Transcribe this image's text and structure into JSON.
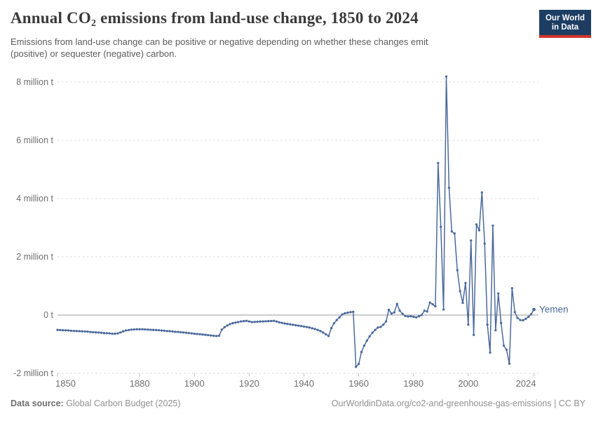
{
  "header": {
    "title_pre": "Annual CO",
    "title_sub": "2",
    "title_post": " emissions from land-use change, 1850 to 2024",
    "subtitle_line1": "Emissions from land-use change can be positive or negative depending on whether these changes emit",
    "subtitle_line2": "(positive) or sequester (negative) carbon.",
    "logo": {
      "line1": "Our World",
      "line2": "in Data",
      "bg_color": "#1d3d63",
      "accent_color": "#d2362c"
    }
  },
  "footer": {
    "source_label": "Data source:",
    "source_text": "Global Carbon Budget (2025)",
    "credit": "OurWorldinData.org/co2-and-greenhouse-gas-emissions | CC BY"
  },
  "chart_data": {
    "type": "line",
    "title": "Annual CO2 emissions from land-use change, 1850 to 2024",
    "entity": "Yemen",
    "unit": "million tonnes",
    "line_color": "#4c6a9c",
    "axis_text_color": "#6f6f6f",
    "grid": "dashed horizontal gridlines, solid zero line",
    "legend_position": "end-of-line entity label",
    "xlabel": "",
    "ylabel": "",
    "xlim": [
      1850,
      2024
    ],
    "ylim": [
      -2,
      8.4
    ],
    "x_ticks": [
      1850,
      1880,
      1900,
      1920,
      1940,
      1960,
      1980,
      2000,
      2024
    ],
    "y_ticks": [
      {
        "value": 8,
        "label": "8 million t"
      },
      {
        "value": 6,
        "label": "6 million t"
      },
      {
        "value": 4,
        "label": "4 million t"
      },
      {
        "value": 2,
        "label": "2 million t"
      },
      {
        "value": 0,
        "label": "0 t"
      },
      {
        "value": -2,
        "label": "-2 million t"
      }
    ],
    "x_start": 1850,
    "x_step": 1,
    "values": [
      -0.51,
      -0.515,
      -0.52,
      -0.525,
      -0.53,
      -0.54,
      -0.545,
      -0.55,
      -0.555,
      -0.56,
      -0.565,
      -0.57,
      -0.58,
      -0.59,
      -0.595,
      -0.6,
      -0.61,
      -0.62,
      -0.625,
      -0.63,
      -0.64,
      -0.64,
      -0.63,
      -0.6,
      -0.56,
      -0.53,
      -0.515,
      -0.5,
      -0.495,
      -0.49,
      -0.49,
      -0.49,
      -0.495,
      -0.5,
      -0.505,
      -0.51,
      -0.515,
      -0.52,
      -0.53,
      -0.54,
      -0.55,
      -0.555,
      -0.565,
      -0.575,
      -0.58,
      -0.59,
      -0.6,
      -0.61,
      -0.62,
      -0.63,
      -0.64,
      -0.65,
      -0.66,
      -0.67,
      -0.68,
      -0.69,
      -0.7,
      -0.71,
      -0.72,
      -0.71,
      -0.5,
      -0.42,
      -0.36,
      -0.31,
      -0.28,
      -0.26,
      -0.24,
      -0.22,
      -0.21,
      -0.2,
      -0.22,
      -0.24,
      -0.235,
      -0.23,
      -0.225,
      -0.22,
      -0.215,
      -0.21,
      -0.205,
      -0.2,
      -0.22,
      -0.25,
      -0.27,
      -0.29,
      -0.305,
      -0.32,
      -0.335,
      -0.35,
      -0.365,
      -0.38,
      -0.395,
      -0.41,
      -0.43,
      -0.455,
      -0.48,
      -0.51,
      -0.55,
      -0.6,
      -0.66,
      -0.72,
      -0.45,
      -0.28,
      -0.17,
      -0.08,
      0.02,
      0.06,
      0.08,
      0.1,
      0.11,
      -1.78,
      -1.68,
      -1.27,
      -1.05,
      -0.88,
      -0.73,
      -0.61,
      -0.51,
      -0.43,
      -0.41,
      -0.33,
      -0.22,
      0.18,
      0.05,
      0.09,
      0.38,
      0.15,
      0.04,
      -0.03,
      -0.05,
      -0.04,
      -0.06,
      -0.08,
      -0.04,
      0,
      0.15,
      0.12,
      0.43,
      0.37,
      0.3,
      5.22,
      3.03,
      0.19,
      8.19,
      4.37,
      2.87,
      2.8,
      1.54,
      0.82,
      0.42,
      1.1,
      -0.33,
      2.56,
      -0.68,
      3.11,
      2.91,
      4.21,
      2.45,
      -0.33,
      -1.29,
      3.07,
      -0.52,
      0.74,
      -0.27,
      -1.05,
      -1.19,
      -1.67,
      0.92,
      0.1,
      -0.1,
      -0.17,
      -0.18,
      -0.13,
      -0.06,
      0.03,
      0.19
    ]
  }
}
